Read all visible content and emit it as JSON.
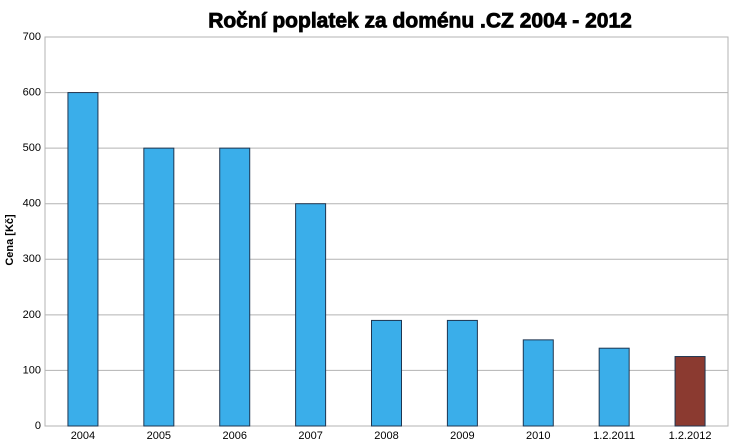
{
  "chart_data": {
    "type": "bar",
    "title": "Roční poplatek za doménu .CZ 2004 - 2012",
    "y_label": "Cena [Kč]",
    "categories": [
      "2004",
      "2005",
      "2006",
      "2007",
      "2008",
      "2009",
      "2010",
      "1.2.2011",
      "1.2.2012"
    ],
    "values": [
      600,
      500,
      500,
      400,
      190,
      190,
      155,
      140,
      125
    ],
    "colors": [
      "#3aaeea",
      "#3aaeea",
      "#3aaeea",
      "#3aaeea",
      "#3aaeea",
      "#3aaeea",
      "#3aaeea",
      "#3aaeea",
      "#8b3a30"
    ],
    "ylim": [
      0,
      700
    ],
    "yticks": [
      0,
      100,
      200,
      300,
      400,
      500,
      600,
      700
    ],
    "grid": true
  }
}
